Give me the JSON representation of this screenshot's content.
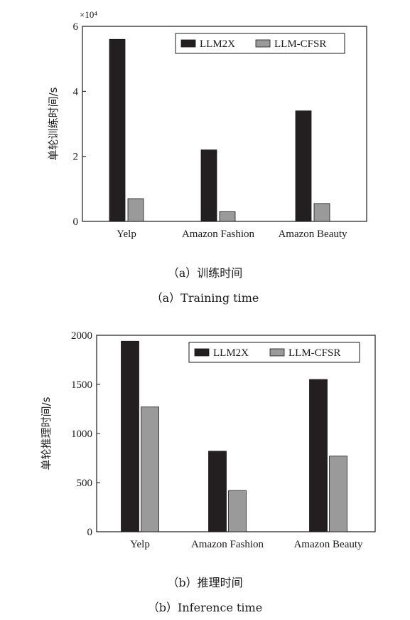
{
  "colors": {
    "series_1": "#231f20",
    "series_2": "#9a9a9a"
  },
  "captions": {
    "a_cn": "（a）训练时间",
    "a_en": "（a）Training time",
    "b_cn": "（b）推理时间",
    "b_en": "（b）Inference time"
  },
  "chart_data": [
    {
      "type": "bar",
      "title": "",
      "xlabel": "",
      "ylabel": "单轮训练时间/s",
      "scale_note": "×10⁴",
      "ylim": [
        0,
        6
      ],
      "yticks": [
        0,
        2,
        4,
        6
      ],
      "ytick_labels": [
        "0",
        "2",
        "4",
        "6"
      ],
      "categories": [
        "Yelp",
        "Amazon Fashion",
        "Amazon Beauty"
      ],
      "series": [
        {
          "name": "LLM2X",
          "values": [
            5.6,
            2.2,
            3.4
          ]
        },
        {
          "name": "LLM-CFSR",
          "values": [
            0.7,
            0.3,
            0.55
          ]
        }
      ],
      "legend": "top-right",
      "grid": false
    },
    {
      "type": "bar",
      "title": "",
      "xlabel": "",
      "ylabel": "单轮推理时间/s",
      "ylim": [
        0,
        2000
      ],
      "yticks": [
        0,
        500,
        1000,
        1500,
        2000
      ],
      "ytick_labels": [
        "0",
        "500",
        "1000",
        "1500",
        "2000"
      ],
      "categories": [
        "Yelp",
        "Amazon Fashion",
        "Amazon Beauty"
      ],
      "series": [
        {
          "name": "LLM2X",
          "values": [
            1940,
            820,
            1550
          ]
        },
        {
          "name": "LLM-CFSR",
          "values": [
            1270,
            420,
            770
          ]
        }
      ],
      "legend": "top-right",
      "grid": false
    }
  ]
}
